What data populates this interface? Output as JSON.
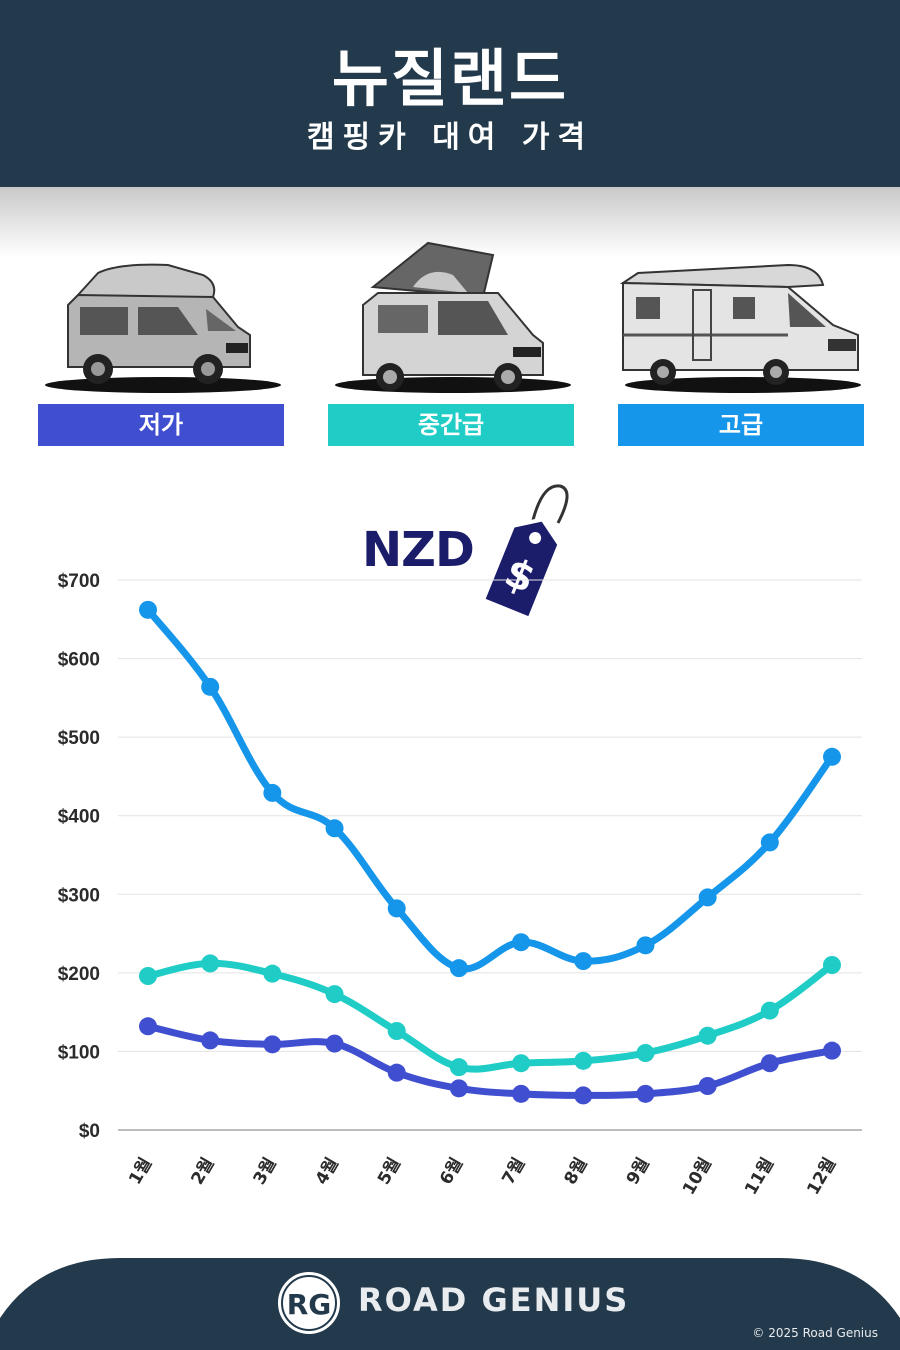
{
  "header": {
    "title": "뉴질랜드",
    "subtitle": "캠핑카 대여 가격"
  },
  "categories_panel": [
    {
      "label": "저가",
      "color": "#3f4fd0",
      "icon": "compact-campervan-icon"
    },
    {
      "label": "중간급",
      "color": "#1fcdc6",
      "icon": "poptop-campervan-icon"
    },
    {
      "label": "고급",
      "color": "#1596ea",
      "icon": "motorhome-icon"
    }
  ],
  "currency": {
    "label": "NZD",
    "icon": "price-tag-icon",
    "symbol": "$"
  },
  "chart_data": {
    "type": "line",
    "categories": [
      "1월",
      "2월",
      "3월",
      "4월",
      "5월",
      "6월",
      "7월",
      "8월",
      "9월",
      "10월",
      "11월",
      "12월"
    ],
    "series": [
      {
        "name": "고급",
        "color": "#1596ea",
        "values": [
          662,
          564,
          429,
          384,
          282,
          206,
          239,
          215,
          235,
          296,
          366,
          475
        ]
      },
      {
        "name": "중간급",
        "color": "#1fcdc6",
        "values": [
          196,
          212,
          199,
          173,
          126,
          80,
          85,
          88,
          98,
          120,
          152,
          210
        ]
      },
      {
        "name": "저가",
        "color": "#3f4fd0",
        "values": [
          132,
          114,
          109,
          110,
          73,
          53,
          46,
          44,
          46,
          56,
          85,
          101
        ]
      }
    ],
    "yticks": [
      "$0",
      "$100",
      "$200",
      "$300",
      "$400",
      "$500",
      "$600",
      "$700"
    ],
    "ylim": [
      0,
      700
    ],
    "grid": true,
    "legend": "none"
  },
  "footer": {
    "logo_text": "RG",
    "brand": "ROAD GENIUS",
    "copyright": "© 2025 Road Genius",
    "background": "#233a4c"
  }
}
